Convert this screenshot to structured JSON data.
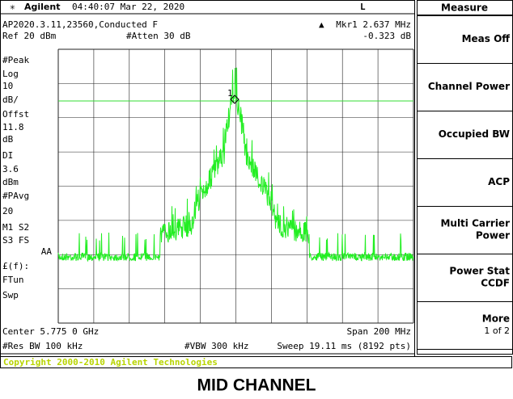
{
  "header": {
    "brand": "Agilent",
    "datetime": "04:40:07  Mar 22, 2020",
    "indicator": "L"
  },
  "screen": {
    "title": "AP2020.3.11,23560,Conducted F",
    "marker": "Mkr1  2.637 MHz",
    "marker_value": "-0.323 dB",
    "ref": "Ref 20 dBm",
    "atten": "#Atten 30 dB",
    "side_labels": [
      "#Peak",
      "Log",
      "10",
      "dB/",
      "Offst",
      "11.8",
      "dB",
      "DI",
      "3.6",
      "dBm",
      "#PAvg",
      "20",
      "M1  S2",
      "S3  FS",
      "AA",
      "£(f):",
      "FTun",
      "Swp"
    ],
    "marker_label": "1",
    "center": "Center 5.775 0 GHz",
    "span": "Span 200 MHz",
    "rbw": "#Res BW 100 kHz",
    "vbw": "#VBW 300 kHz",
    "sweep": "Sweep 19.11 ms (8192 pts)"
  },
  "menu": {
    "title": "Measure",
    "softkeys": [
      [
        "Meas Off"
      ],
      [
        "Channel Power"
      ],
      [
        "Occupied BW"
      ],
      [
        "ACP"
      ],
      [
        "Multi Carrier",
        "Power"
      ],
      [
        "Power Stat",
        "CCDF"
      ],
      [
        "More",
        "1 of 2"
      ]
    ]
  },
  "copyright": "Copyright 2000-2010 Agilent Technologies",
  "caption": "MID CHANNEL"
}
